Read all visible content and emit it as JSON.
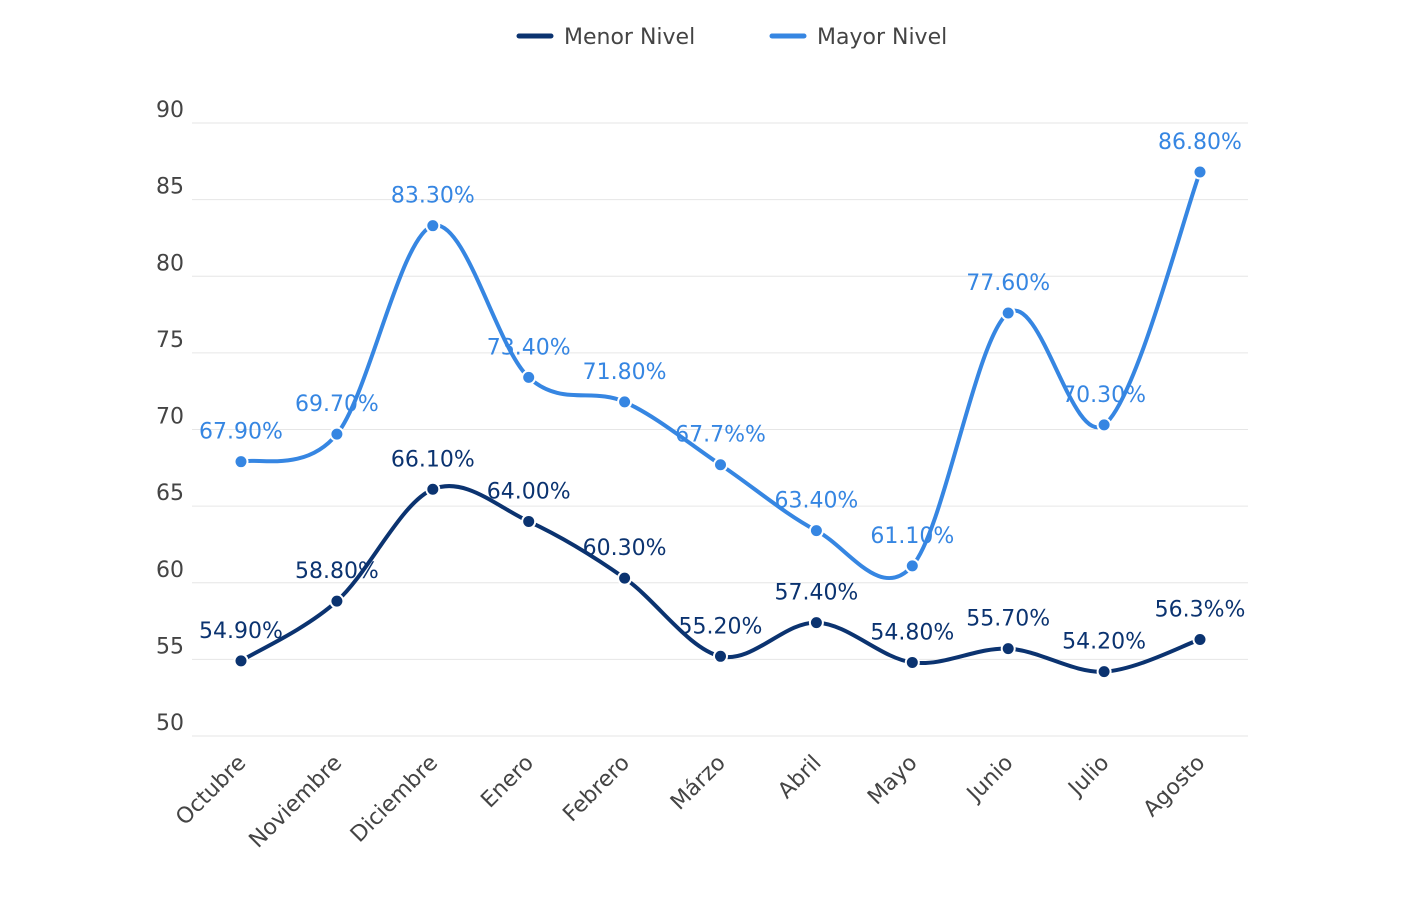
{
  "chart_data": {
    "type": "line",
    "title": "",
    "xlabel": "",
    "ylabel": "",
    "ylim": [
      50,
      90
    ],
    "yticks": [
      50,
      55,
      60,
      65,
      70,
      75,
      80,
      85,
      90
    ],
    "grid": true,
    "legend_position": "top-center",
    "categories": [
      "Octubre",
      "Noviembre",
      "Diciembre",
      "Enero",
      "Febrero",
      "Márzo",
      "Abril",
      "Mayo",
      "Junio",
      "Julio",
      "Agosto"
    ],
    "series": [
      {
        "name": "Menor Nivel",
        "color": "#0b3370",
        "values": [
          54.9,
          58.8,
          66.1,
          64.0,
          60.3,
          55.2,
          57.4,
          54.8,
          55.7,
          54.2,
          56.3
        ],
        "labels": [
          "54.90%",
          "58.80%",
          "66.10%",
          "64.00%",
          "60.30%",
          "55.20%",
          "57.40%",
          "54.80%",
          "55.70%",
          "54.20%",
          "56.3%%"
        ]
      },
      {
        "name": "Mayor Nivel",
        "color": "#3686e2",
        "values": [
          67.9,
          69.7,
          83.3,
          73.4,
          71.8,
          67.7,
          63.4,
          61.1,
          77.6,
          70.3,
          86.8
        ],
        "labels": [
          "67.90%",
          "69.70%",
          "83.30%",
          "73.40%",
          "71.80%",
          "67.7%%",
          "63.40%",
          "61.10%",
          "77.60%",
          "70.30%",
          "86.80%"
        ]
      }
    ]
  }
}
